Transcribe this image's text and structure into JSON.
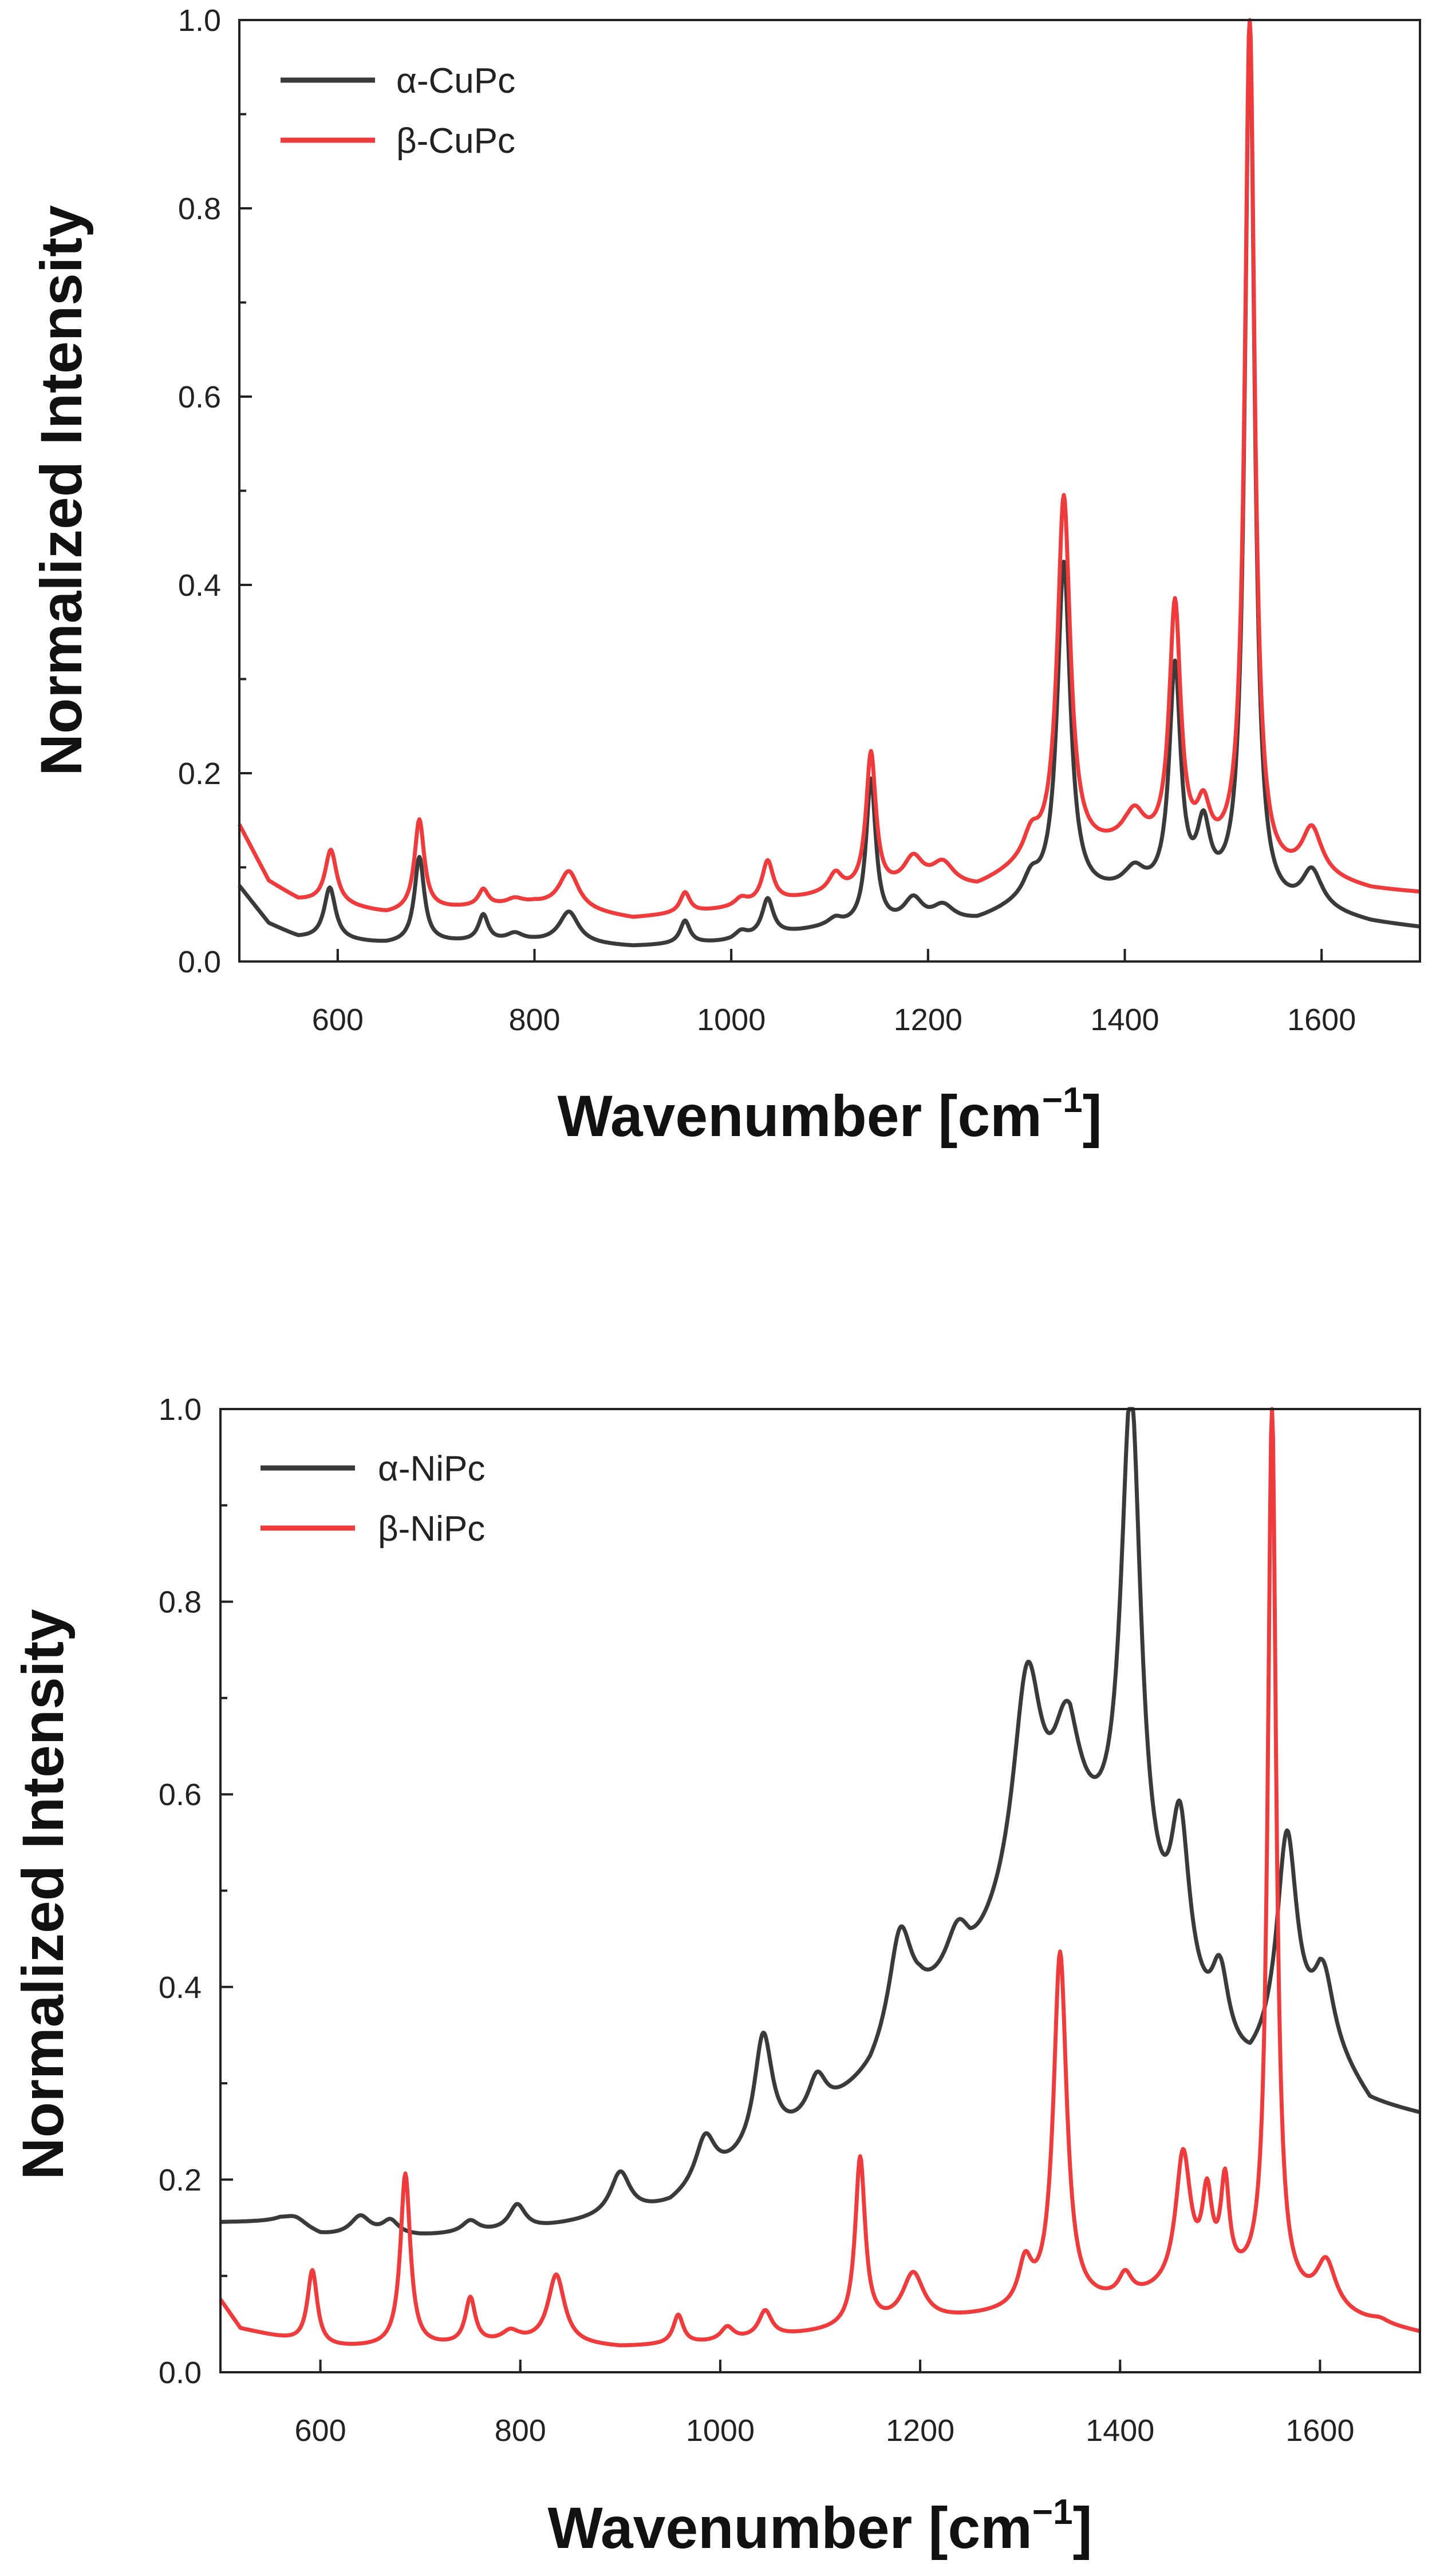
{
  "chart_data": [
    {
      "type": "line",
      "title": "",
      "xlabel": "Wavenumber [cm",
      "xlabel_sup": "−1",
      "xlabel_close": "]",
      "ylabel": "Normalized Intensity",
      "xlim": [
        500,
        1700
      ],
      "ylim": [
        0.0,
        1.0
      ],
      "x_ticks": [
        600,
        800,
        1000,
        1200,
        1400,
        1600
      ],
      "x_tick_labels": [
        "600",
        "800",
        "1000",
        "1200",
        "1400",
        "1600"
      ],
      "y_ticks": [
        0.0,
        0.2,
        0.4,
        0.6,
        0.8,
        1.0
      ],
      "y_tick_labels": [
        "0.0",
        "0.2",
        "0.4",
        "0.6",
        "0.8",
        "1.0"
      ],
      "legend_position": "top-left",
      "series": [
        {
          "name": "α-CuPc",
          "color": "#3a3a3a",
          "baseline": [
            [
              500,
              0.08
            ],
            [
              530,
              0.04
            ],
            [
              560,
              0.025
            ],
            [
              600,
              0.022
            ],
            [
              650,
              0.018
            ],
            [
              700,
              0.02
            ],
            [
              800,
              0.02
            ],
            [
              900,
              0.015
            ],
            [
              1000,
              0.02
            ],
            [
              1100,
              0.035
            ],
            [
              1200,
              0.035
            ],
            [
              1250,
              0.04
            ],
            [
              1300,
              0.06
            ],
            [
              1400,
              0.07
            ],
            [
              1500,
              0.06
            ],
            [
              1550,
              0.05
            ],
            [
              1600,
              0.05
            ],
            [
              1650,
              0.04
            ],
            [
              1700,
              0.035
            ]
          ],
          "peaks": [
            {
              "x": 592,
              "y": 0.078,
              "w": 7
            },
            {
              "x": 683,
              "y": 0.11,
              "w": 6
            },
            {
              "x": 748,
              "y": 0.048,
              "w": 6
            },
            {
              "x": 780,
              "y": 0.028,
              "w": 10
            },
            {
              "x": 835,
              "y": 0.052,
              "w": 12
            },
            {
              "x": 953,
              "y": 0.042,
              "w": 6
            },
            {
              "x": 1010,
              "y": 0.03,
              "w": 8
            },
            {
              "x": 1037,
              "y": 0.065,
              "w": 7
            },
            {
              "x": 1106,
              "y": 0.042,
              "w": 8
            },
            {
              "x": 1142,
              "y": 0.19,
              "w": 6
            },
            {
              "x": 1185,
              "y": 0.062,
              "w": 12
            },
            {
              "x": 1215,
              "y": 0.055,
              "w": 14
            },
            {
              "x": 1305,
              "y": 0.08,
              "w": 9
            },
            {
              "x": 1338,
              "y": 0.42,
              "w": 8
            },
            {
              "x": 1410,
              "y": 0.09,
              "w": 12
            },
            {
              "x": 1451,
              "y": 0.305,
              "w": 7
            },
            {
              "x": 1480,
              "y": 0.13,
              "w": 8
            },
            {
              "x": 1527,
              "y": 0.99,
              "w": 6
            },
            {
              "x": 1590,
              "y": 0.09,
              "w": 12
            }
          ]
        },
        {
          "name": "β-CuPc",
          "color": "#ef3b3b",
          "baseline": [
            [
              500,
              0.145
            ],
            [
              530,
              0.085
            ],
            [
              560,
              0.065
            ],
            [
              600,
              0.06
            ],
            [
              650,
              0.05
            ],
            [
              700,
              0.055
            ],
            [
              800,
              0.06
            ],
            [
              900,
              0.045
            ],
            [
              1000,
              0.055
            ],
            [
              1100,
              0.07
            ],
            [
              1200,
              0.075
            ],
            [
              1250,
              0.075
            ],
            [
              1300,
              0.1
            ],
            [
              1400,
              0.12
            ],
            [
              1500,
              0.1
            ],
            [
              1550,
              0.085
            ],
            [
              1600,
              0.085
            ],
            [
              1650,
              0.075
            ],
            [
              1700,
              0.072
            ]
          ],
          "peaks": [
            {
              "x": 593,
              "y": 0.118,
              "w": 7
            },
            {
              "x": 683,
              "y": 0.15,
              "w": 6
            },
            {
              "x": 748,
              "y": 0.075,
              "w": 6
            },
            {
              "x": 780,
              "y": 0.065,
              "w": 10
            },
            {
              "x": 835,
              "y": 0.095,
              "w": 12
            },
            {
              "x": 953,
              "y": 0.072,
              "w": 6
            },
            {
              "x": 1010,
              "y": 0.065,
              "w": 8
            },
            {
              "x": 1037,
              "y": 0.105,
              "w": 7
            },
            {
              "x": 1106,
              "y": 0.09,
              "w": 8
            },
            {
              "x": 1142,
              "y": 0.218,
              "w": 6
            },
            {
              "x": 1185,
              "y": 0.105,
              "w": 12
            },
            {
              "x": 1215,
              "y": 0.1,
              "w": 14
            },
            {
              "x": 1305,
              "y": 0.125,
              "w": 9
            },
            {
              "x": 1338,
              "y": 0.49,
              "w": 8
            },
            {
              "x": 1410,
              "y": 0.15,
              "w": 12
            },
            {
              "x": 1451,
              "y": 0.372,
              "w": 7
            },
            {
              "x": 1480,
              "y": 0.15,
              "w": 8
            },
            {
              "x": 1527,
              "y": 1.0,
              "w": 6
            },
            {
              "x": 1590,
              "y": 0.135,
              "w": 12
            }
          ]
        }
      ]
    },
    {
      "type": "line",
      "title": "",
      "xlabel": "Wavenumber [cm",
      "xlabel_sup": "−1",
      "xlabel_close": "]",
      "ylabel": "Normalized Intensity",
      "xlim": [
        500,
        1700
      ],
      "ylim": [
        0.0,
        1.0
      ],
      "x_ticks": [
        600,
        800,
        1000,
        1200,
        1400,
        1600
      ],
      "x_tick_labels": [
        "600",
        "800",
        "1000",
        "1200",
        "1400",
        "1600"
      ],
      "y_ticks": [
        0.0,
        0.2,
        0.4,
        0.6,
        0.8,
        1.0
      ],
      "y_tick_labels": [
        "0.0",
        "0.2",
        "0.4",
        "0.6",
        "0.8",
        "1.0"
      ],
      "legend_position": "top-left",
      "series": [
        {
          "name": "α-NiPc",
          "color": "#3a3a3a",
          "baseline": [
            [
              500,
              0.155
            ],
            [
              560,
              0.155
            ],
            [
              600,
              0.14
            ],
            [
              700,
              0.14
            ],
            [
              800,
              0.145
            ],
            [
              900,
              0.16
            ],
            [
              950,
              0.17
            ],
            [
              1000,
              0.2
            ],
            [
              1050,
              0.23
            ],
            [
              1100,
              0.26
            ],
            [
              1150,
              0.3
            ],
            [
              1200,
              0.37
            ],
            [
              1250,
              0.4
            ],
            [
              1300,
              0.48
            ],
            [
              1350,
              0.55
            ],
            [
              1400,
              0.5
            ],
            [
              1450,
              0.4
            ],
            [
              1500,
              0.32
            ],
            [
              1530,
              0.3
            ],
            [
              1560,
              0.33
            ],
            [
              1600,
              0.34
            ],
            [
              1650,
              0.275
            ],
            [
              1700,
              0.265
            ]
          ],
          "peaks": [
            {
              "x": 575,
              "y": 0.16,
              "w": 15
            },
            {
              "x": 640,
              "y": 0.16,
              "w": 12
            },
            {
              "x": 670,
              "y": 0.155,
              "w": 10
            },
            {
              "x": 750,
              "y": 0.155,
              "w": 10
            },
            {
              "x": 797,
              "y": 0.172,
              "w": 10
            },
            {
              "x": 900,
              "y": 0.205,
              "w": 12
            },
            {
              "x": 985,
              "y": 0.24,
              "w": 12
            },
            {
              "x": 1043,
              "y": 0.345,
              "w": 11
            },
            {
              "x": 1097,
              "y": 0.3,
              "w": 11
            },
            {
              "x": 1180,
              "y": 0.45,
              "w": 14
            },
            {
              "x": 1238,
              "y": 0.445,
              "w": 15
            },
            {
              "x": 1307,
              "y": 0.71,
              "w": 17
            },
            {
              "x": 1346,
              "y": 0.64,
              "w": 16
            },
            {
              "x": 1411,
              "y": 0.998,
              "w": 12
            },
            {
              "x": 1460,
              "y": 0.55,
              "w": 11
            },
            {
              "x": 1500,
              "y": 0.4,
              "w": 10
            },
            {
              "x": 1567,
              "y": 0.548,
              "w": 12
            },
            {
              "x": 1604,
              "y": 0.4,
              "w": 12
            }
          ]
        },
        {
          "name": "β-NiPc",
          "color": "#ef3b3b",
          "baseline": [
            [
              500,
              0.075
            ],
            [
              520,
              0.045
            ],
            [
              560,
              0.035
            ],
            [
              600,
              0.025
            ],
            [
              700,
              0.025
            ],
            [
              800,
              0.03
            ],
            [
              900,
              0.025
            ],
            [
              1000,
              0.03
            ],
            [
              1100,
              0.04
            ],
            [
              1200,
              0.05
            ],
            [
              1300,
              0.06
            ],
            [
              1400,
              0.07
            ],
            [
              1500,
              0.09
            ],
            [
              1550,
              0.08
            ],
            [
              1600,
              0.06
            ],
            [
              1650,
              0.05
            ],
            [
              1700,
              0.04
            ]
          ],
          "peaks": [
            {
              "x": 592,
              "y": 0.105,
              "w": 6
            },
            {
              "x": 685,
              "y": 0.205,
              "w": 6
            },
            {
              "x": 750,
              "y": 0.075,
              "w": 6
            },
            {
              "x": 790,
              "y": 0.04,
              "w": 10
            },
            {
              "x": 836,
              "y": 0.1,
              "w": 10
            },
            {
              "x": 958,
              "y": 0.058,
              "w": 6
            },
            {
              "x": 1007,
              "y": 0.045,
              "w": 8
            },
            {
              "x": 1045,
              "y": 0.062,
              "w": 8
            },
            {
              "x": 1140,
              "y": 0.22,
              "w": 6
            },
            {
              "x": 1193,
              "y": 0.1,
              "w": 13
            },
            {
              "x": 1305,
              "y": 0.105,
              "w": 8
            },
            {
              "x": 1340,
              "y": 0.432,
              "w": 8
            },
            {
              "x": 1405,
              "y": 0.095,
              "w": 8
            },
            {
              "x": 1463,
              "y": 0.22,
              "w": 9
            },
            {
              "x": 1487,
              "y": 0.17,
              "w": 6
            },
            {
              "x": 1505,
              "y": 0.185,
              "w": 5
            },
            {
              "x": 1552,
              "y": 1.0,
              "w": 5
            },
            {
              "x": 1606,
              "y": 0.11,
              "w": 12
            },
            {
              "x": 1660,
              "y": 0.052,
              "w": 10
            }
          ]
        }
      ]
    }
  ]
}
